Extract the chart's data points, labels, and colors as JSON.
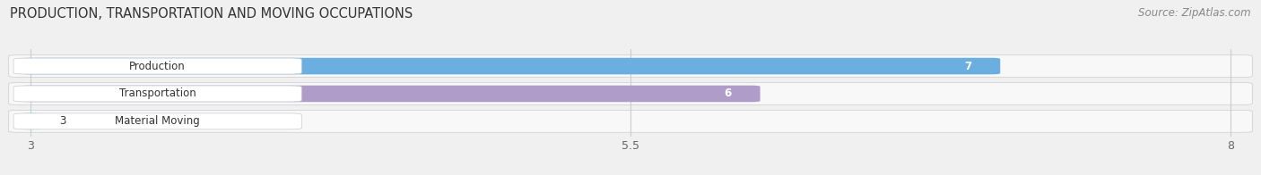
{
  "title": "PRODUCTION, TRANSPORTATION AND MOVING OCCUPATIONS",
  "source": "Source: ZipAtlas.com",
  "categories": [
    "Production",
    "Transportation",
    "Material Moving"
  ],
  "values": [
    7,
    6,
    3
  ],
  "bar_colors": [
    "#6aafe0",
    "#b09cc8",
    "#6dcfcf"
  ],
  "xlim": [
    3,
    8
  ],
  "xticks": [
    3,
    5.5,
    8
  ],
  "value_labels": [
    "7",
    "6",
    "3"
  ],
  "value_label_inside": [
    true,
    true,
    false
  ],
  "bg_color": "#f2f2f2",
  "row_bg_color": "#ebebeb",
  "title_fontsize": 10.5,
  "source_fontsize": 8.5,
  "label_fontsize": 8.5,
  "tick_fontsize": 9
}
